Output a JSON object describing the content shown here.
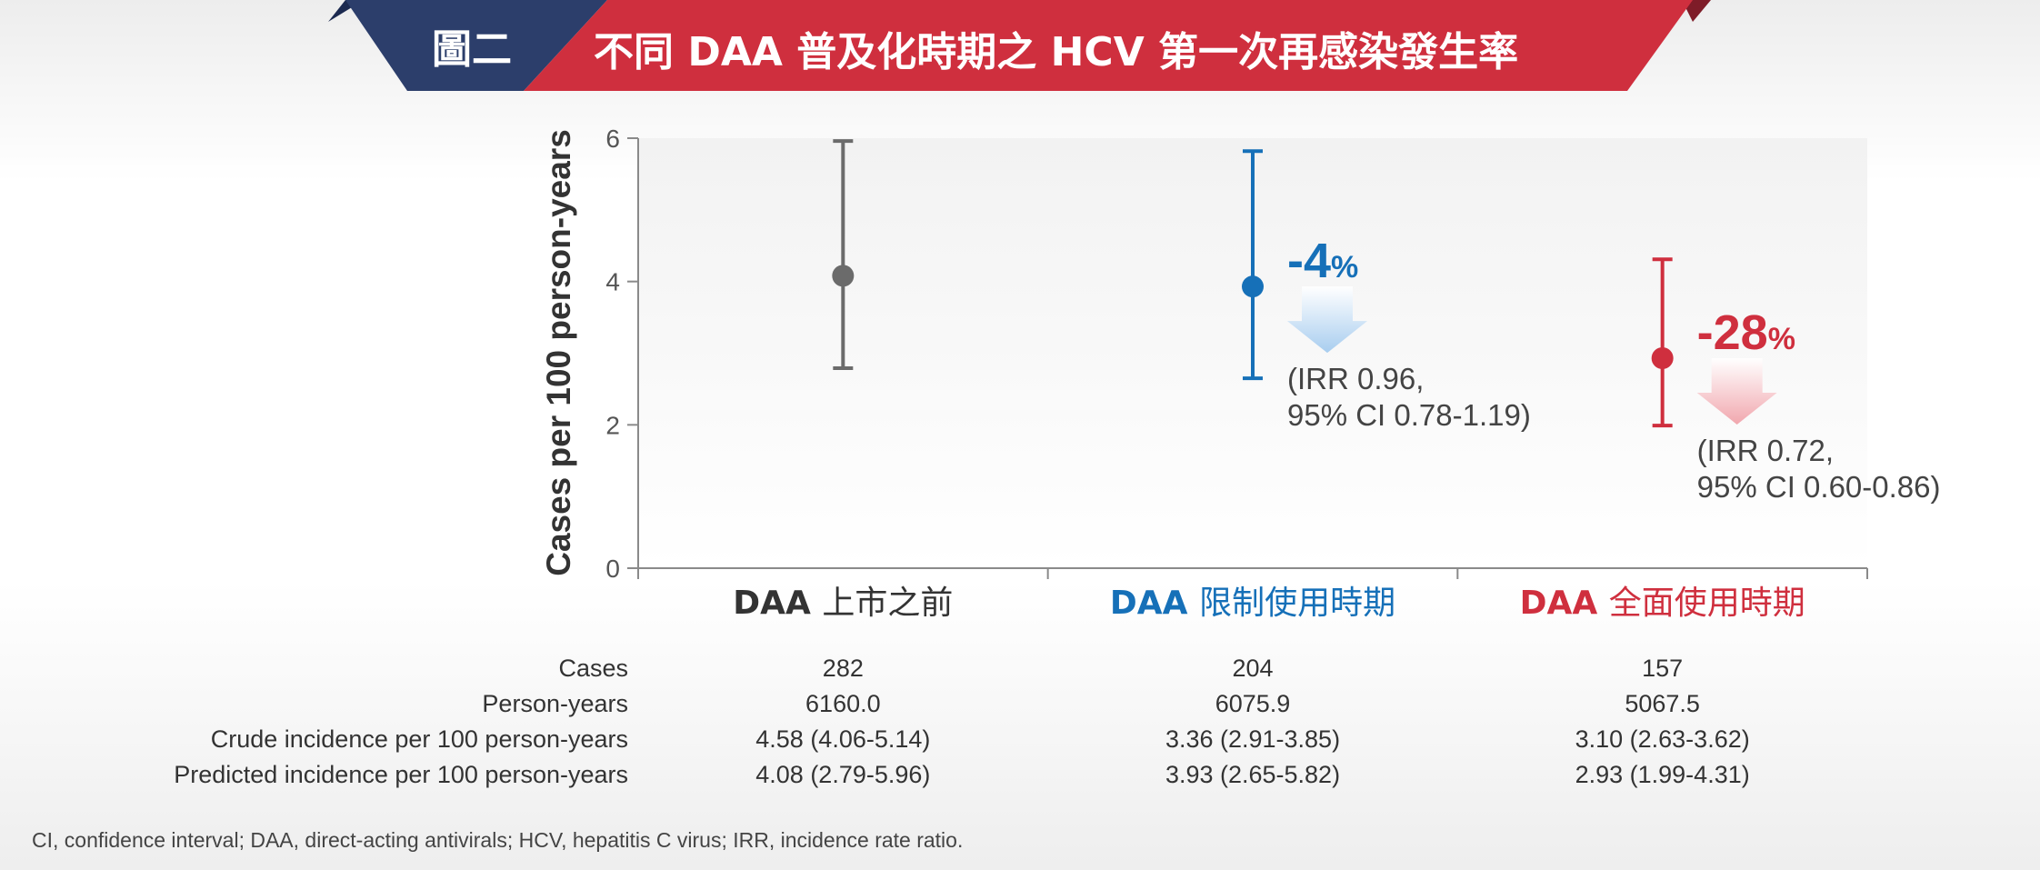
{
  "header": {
    "figure_label": "圖二",
    "title": "不同 DAA 普及化時期之 HCV 第一次再感染發生率",
    "colors": {
      "navy": "#2c3e6b",
      "red": "#cf2f3e",
      "dark_red": "#7e1c28"
    }
  },
  "chart_data": {
    "type": "scatter",
    "title": "",
    "ylabel": "Cases per 100 person-years",
    "ylim": [
      0,
      6
    ],
    "y_ticks": [
      "0",
      "2",
      "4",
      "6"
    ],
    "grid": false,
    "categories": [
      {
        "prefix": "DAA",
        "suffix": "上市之前",
        "color": "#333333"
      },
      {
        "prefix": "DAA",
        "suffix": "限制使用時期",
        "color": "#1670b8"
      },
      {
        "prefix": "DAA",
        "suffix": "全面使用時期",
        "color": "#cf2f3e"
      }
    ],
    "series": [
      {
        "values": [
          4.08,
          3.93,
          2.93
        ],
        "ci_low": [
          2.79,
          2.65,
          1.99
        ],
        "ci_high": [
          5.96,
          5.82,
          4.31
        ],
        "colors": [
          "#6b6b6b",
          "#1670b8",
          "#cf2f3e"
        ]
      }
    ],
    "annotations": [
      {
        "category": 1,
        "change": "-4",
        "unit": "%",
        "irr_line1": "(IRR 0.96,",
        "irr_line2": "95% CI 0.78-1.19)",
        "color": "#1670b8",
        "arrow_color": "#a8cdef"
      },
      {
        "category": 2,
        "change": "-28",
        "unit": "%",
        "irr_line1": "(IRR 0.72,",
        "irr_line2": "95% CI 0.60-0.86)",
        "color": "#cf2f3e",
        "arrow_color": "#f1a7ae"
      }
    ]
  },
  "table": {
    "rows": [
      {
        "label": "Cases",
        "values": [
          "282",
          "204",
          "157"
        ]
      },
      {
        "label": "Person-years",
        "values": [
          "6160.0",
          "6075.9",
          "5067.5"
        ]
      },
      {
        "label": "Crude incidence per 100 person-years",
        "values": [
          "4.58 (4.06-5.14)",
          "3.36 (2.91-3.85)",
          "3.10 (2.63-3.62)"
        ]
      },
      {
        "label": "Predicted incidence per 100 person-years",
        "values": [
          "4.08 (2.79-5.96)",
          "3.93 (2.65-5.82)",
          "2.93 (1.99-4.31)"
        ]
      }
    ]
  },
  "footnote": "CI, confidence interval; DAA, direct-acting antivirals; HCV, hepatitis C virus; IRR, incidence rate ratio."
}
